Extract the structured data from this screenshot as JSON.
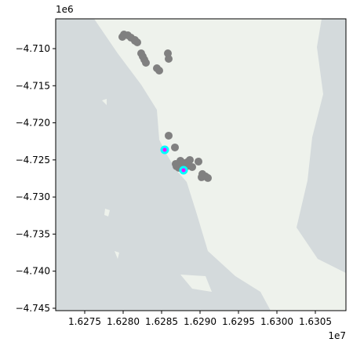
{
  "chart_data": {
    "type": "scatter",
    "x_offset_label": "1e7",
    "y_offset_label": "1e6",
    "xlim": [
      16271224,
      16308980
    ],
    "ylim": [
      -4745320,
      -4705980
    ],
    "xticks": [
      {
        "value": 16275000,
        "label": "1.6275"
      },
      {
        "value": 16280000,
        "label": "1.6280"
      },
      {
        "value": 16285000,
        "label": "1.6285"
      },
      {
        "value": 16290000,
        "label": "1.6290"
      },
      {
        "value": 16295000,
        "label": "1.6295"
      },
      {
        "value": 16300000,
        "label": "1.6300"
      },
      {
        "value": 16305000,
        "label": "1.6305"
      }
    ],
    "yticks": [
      {
        "value": -4710000,
        "label": "−4.710"
      },
      {
        "value": -4715000,
        "label": "−4.715"
      },
      {
        "value": -4720000,
        "label": "−4.720"
      },
      {
        "value": -4725000,
        "label": "−4.725"
      },
      {
        "value": -4730000,
        "label": "−4.730"
      },
      {
        "value": -4735000,
        "label": "−4.735"
      },
      {
        "value": -4740000,
        "label": "−4.740"
      },
      {
        "value": -4745000,
        "label": "−4.745"
      }
    ],
    "series": [
      {
        "color": "#808080",
        "x": [
          16279898,
          16280102,
          16280612,
          16281020,
          16281531,
          16281837,
          16281531,
          16282347,
          16282551,
          16282755,
          16282959,
          16284388,
          16284694,
          16285816,
          16285918,
          16285918,
          16286735,
          16286837,
          16286939,
          16287245,
          16287449,
          16287653,
          16287959,
          16288469,
          16288673,
          16288265,
          16288980,
          16289796,
          16290306,
          16290714,
          16291020,
          16290204
        ],
        "y": [
          -4708414,
          -4708097,
          -4708203,
          -4708520,
          -4708837,
          -4709154,
          -4708943,
          -4710634,
          -4711057,
          -4711480,
          -4711903,
          -4712643,
          -4712960,
          -4710634,
          -4711374,
          -4721733,
          -4723318,
          -4725538,
          -4725855,
          -4726066,
          -4725115,
          -4725644,
          -4725432,
          -4725221,
          -4725009,
          -4725855,
          -4725961,
          -4725221,
          -4726912,
          -4727229,
          -4727441,
          -4727335
        ]
      },
      {
        "color": "#ff00ff",
        "edgecolor": "#00ffff",
        "x": [
          16285408,
          16287857
        ],
        "y": [
          -4723635,
          -4726384
        ]
      }
    ]
  }
}
